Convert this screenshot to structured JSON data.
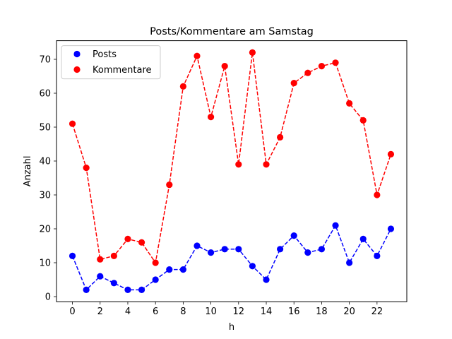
{
  "chart_data": {
    "type": "line",
    "title": "Posts/Kommentare am Samstag",
    "xlabel": "h",
    "ylabel": "Anzahl",
    "x": [
      0,
      1,
      2,
      3,
      4,
      5,
      6,
      7,
      8,
      9,
      10,
      11,
      12,
      13,
      14,
      15,
      16,
      17,
      18,
      19,
      20,
      21,
      22,
      23
    ],
    "xlim": [
      -1.15,
      24.15
    ],
    "ylim": [
      -1.5,
      75.5
    ],
    "xticks": [
      0,
      2,
      4,
      6,
      8,
      10,
      12,
      14,
      16,
      18,
      20,
      22
    ],
    "yticks": [
      0,
      10,
      20,
      30,
      40,
      50,
      60,
      70
    ],
    "grid": false,
    "legend_position": "upper-left",
    "series": [
      {
        "name": "Posts",
        "color": "#0000ff",
        "linestyle": "dashed",
        "marker": "circle",
        "values": [
          12,
          2,
          6,
          4,
          2,
          2,
          5,
          8,
          8,
          15,
          13,
          14,
          14,
          9,
          5,
          14,
          18,
          13,
          14,
          21,
          10,
          17,
          12,
          20
        ]
      },
      {
        "name": "Kommentare",
        "color": "#ff0000",
        "linestyle": "dashed",
        "marker": "circle",
        "values": [
          51,
          38,
          11,
          12,
          17,
          16,
          10,
          33,
          62,
          71,
          53,
          68,
          39,
          72,
          39,
          47,
          63,
          66,
          68,
          69,
          57,
          52,
          30,
          42
        ]
      }
    ]
  }
}
